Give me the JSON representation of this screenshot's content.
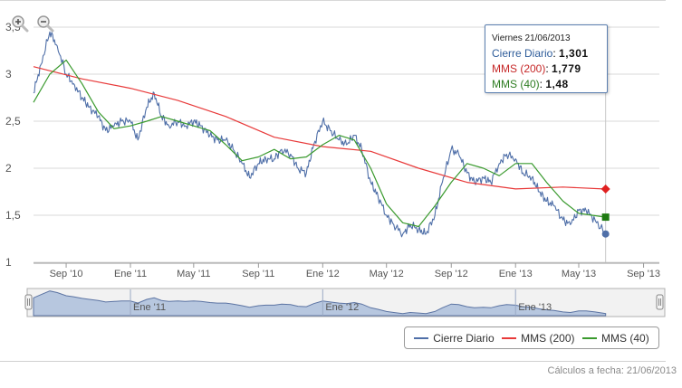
{
  "chart_data": {
    "type": "line",
    "yaxis": {
      "ylim": [
        1,
        3.5
      ],
      "ticks": [
        "1",
        "1,5",
        "2",
        "2,5",
        "3",
        "3,5"
      ]
    },
    "xaxis": {
      "ticks": [
        "Sep '10",
        "Ene '11",
        "May '11",
        "Sep '11",
        "Ene '12",
        "May '12",
        "Sep '12",
        "Ene '13",
        "May '13",
        "Sep '13"
      ]
    },
    "navigator_ticks": [
      "Ene '11",
      "Ene '12",
      "Ene '13"
    ],
    "grid": true,
    "legend_position": "bottom-right",
    "series": [
      {
        "name": "Cierre Diario",
        "color": "#4f6fa8",
        "points": [
          [
            "2010-07-01",
            2.8
          ],
          [
            "2010-07-15",
            3.1
          ],
          [
            "2010-08-01",
            3.45
          ],
          [
            "2010-08-15",
            3.3
          ],
          [
            "2010-09-01",
            3.0
          ],
          [
            "2010-09-15",
            2.9
          ],
          [
            "2010-10-01",
            2.75
          ],
          [
            "2010-10-15",
            2.65
          ],
          [
            "2010-11-01",
            2.55
          ],
          [
            "2010-11-15",
            2.4
          ],
          [
            "2010-12-01",
            2.45
          ],
          [
            "2010-12-15",
            2.5
          ],
          [
            "2011-01-01",
            2.5
          ],
          [
            "2011-01-15",
            2.3
          ],
          [
            "2011-02-01",
            2.65
          ],
          [
            "2011-02-15",
            2.8
          ],
          [
            "2011-03-01",
            2.55
          ],
          [
            "2011-03-15",
            2.45
          ],
          [
            "2011-04-01",
            2.5
          ],
          [
            "2011-04-15",
            2.45
          ],
          [
            "2011-05-01",
            2.5
          ],
          [
            "2011-05-15",
            2.45
          ],
          [
            "2011-06-01",
            2.35
          ],
          [
            "2011-06-15",
            2.3
          ],
          [
            "2011-07-01",
            2.3
          ],
          [
            "2011-07-15",
            2.2
          ],
          [
            "2011-08-01",
            2.05
          ],
          [
            "2011-08-15",
            1.9
          ],
          [
            "2011-09-01",
            2.05
          ],
          [
            "2011-09-15",
            2.1
          ],
          [
            "2011-10-01",
            2.1
          ],
          [
            "2011-10-15",
            2.2
          ],
          [
            "2011-11-01",
            2.15
          ],
          [
            "2011-11-15",
            2.0
          ],
          [
            "2011-12-01",
            1.95
          ],
          [
            "2011-12-15",
            2.25
          ],
          [
            "2012-01-01",
            2.5
          ],
          [
            "2012-01-15",
            2.4
          ],
          [
            "2012-02-01",
            2.3
          ],
          [
            "2012-02-15",
            2.25
          ],
          [
            "2012-03-01",
            2.35
          ],
          [
            "2012-03-15",
            2.2
          ],
          [
            "2012-04-01",
            1.85
          ],
          [
            "2012-04-15",
            1.7
          ],
          [
            "2012-05-01",
            1.5
          ],
          [
            "2012-05-15",
            1.4
          ],
          [
            "2012-06-01",
            1.3
          ],
          [
            "2012-06-15",
            1.4
          ],
          [
            "2012-07-01",
            1.35
          ],
          [
            "2012-07-15",
            1.3
          ],
          [
            "2012-08-01",
            1.5
          ],
          [
            "2012-08-15",
            1.85
          ],
          [
            "2012-09-01",
            2.2
          ],
          [
            "2012-09-15",
            2.15
          ],
          [
            "2012-10-01",
            1.95
          ],
          [
            "2012-10-15",
            1.85
          ],
          [
            "2012-11-01",
            1.9
          ],
          [
            "2012-11-15",
            1.85
          ],
          [
            "2012-12-01",
            2.05
          ],
          [
            "2012-12-15",
            2.15
          ],
          [
            "2013-01-01",
            2.1
          ],
          [
            "2013-01-15",
            1.95
          ],
          [
            "2013-02-01",
            1.9
          ],
          [
            "2013-02-15",
            1.75
          ],
          [
            "2013-03-01",
            1.65
          ],
          [
            "2013-03-15",
            1.6
          ],
          [
            "2013-04-01",
            1.45
          ],
          [
            "2013-04-15",
            1.4
          ],
          [
            "2013-05-01",
            1.55
          ],
          [
            "2013-05-15",
            1.55
          ],
          [
            "2013-06-01",
            1.45
          ],
          [
            "2013-06-21",
            1.301
          ]
        ]
      },
      {
        "name": "MMS (200)",
        "color": "#e83a3a",
        "points": [
          [
            "2010-07-01",
            3.08
          ],
          [
            "2010-10-01",
            2.95
          ],
          [
            "2011-01-01",
            2.85
          ],
          [
            "2011-04-01",
            2.72
          ],
          [
            "2011-07-01",
            2.55
          ],
          [
            "2011-10-01",
            2.33
          ],
          [
            "2012-01-01",
            2.23
          ],
          [
            "2012-04-01",
            2.18
          ],
          [
            "2012-07-01",
            2.0
          ],
          [
            "2012-10-01",
            1.85
          ],
          [
            "2013-01-01",
            1.78
          ],
          [
            "2013-04-01",
            1.8
          ],
          [
            "2013-06-21",
            1.779
          ]
        ]
      },
      {
        "name": "MMS (40)",
        "color": "#3a9a2e",
        "points": [
          [
            "2010-07-01",
            2.7
          ],
          [
            "2010-08-01",
            3.0
          ],
          [
            "2010-09-01",
            3.15
          ],
          [
            "2010-10-01",
            2.9
          ],
          [
            "2010-11-01",
            2.6
          ],
          [
            "2010-12-01",
            2.42
          ],
          [
            "2011-01-01",
            2.45
          ],
          [
            "2011-02-01",
            2.5
          ],
          [
            "2011-03-01",
            2.55
          ],
          [
            "2011-04-01",
            2.5
          ],
          [
            "2011-05-01",
            2.45
          ],
          [
            "2011-06-01",
            2.4
          ],
          [
            "2011-07-01",
            2.25
          ],
          [
            "2011-08-01",
            2.08
          ],
          [
            "2011-09-01",
            2.12
          ],
          [
            "2011-10-01",
            2.2
          ],
          [
            "2011-11-01",
            2.1
          ],
          [
            "2011-12-01",
            2.12
          ],
          [
            "2012-01-01",
            2.25
          ],
          [
            "2012-02-01",
            2.35
          ],
          [
            "2012-03-01",
            2.3
          ],
          [
            "2012-04-01",
            2.0
          ],
          [
            "2012-05-01",
            1.62
          ],
          [
            "2012-06-01",
            1.42
          ],
          [
            "2012-07-01",
            1.38
          ],
          [
            "2012-08-01",
            1.6
          ],
          [
            "2012-09-01",
            1.85
          ],
          [
            "2012-10-01",
            2.05
          ],
          [
            "2012-11-01",
            2.0
          ],
          [
            "2012-12-01",
            1.92
          ],
          [
            "2013-01-01",
            2.05
          ],
          [
            "2013-02-01",
            2.05
          ],
          [
            "2013-03-01",
            1.85
          ],
          [
            "2013-04-01",
            1.65
          ],
          [
            "2013-05-01",
            1.52
          ],
          [
            "2013-06-21",
            1.48
          ]
        ]
      }
    ],
    "marker_date": "2013-06-21"
  },
  "tooltip": {
    "date": "Viernes 21/06/2013",
    "rows": [
      {
        "label": "Cierre Diario",
        "value": "1,301",
        "color": "#2f5d9a"
      },
      {
        "label": "MMS (200)",
        "value": "1,779",
        "color": "#c62828"
      },
      {
        "label": "MMS (40)",
        "value": "1,48",
        "color": "#2e7d22"
      }
    ]
  },
  "legend": {
    "items": [
      {
        "label": "Cierre Diario",
        "color": "#4f6fa8"
      },
      {
        "label": "MMS (200)",
        "color": "#e83a3a"
      },
      {
        "label": "MMS (40)",
        "color": "#3a9a2e"
      }
    ]
  },
  "footer": {
    "note": "Cálculos a fecha: 21/06/2013"
  },
  "controls": {
    "zoom_in_icon": "zoom-in-icon",
    "zoom_out_icon": "zoom-out-icon"
  },
  "colors": {
    "grid": "#d8d8d8",
    "axis": "#666666",
    "navigator_fill": "#b7c7df",
    "navigator_line": "#5c74a3"
  }
}
